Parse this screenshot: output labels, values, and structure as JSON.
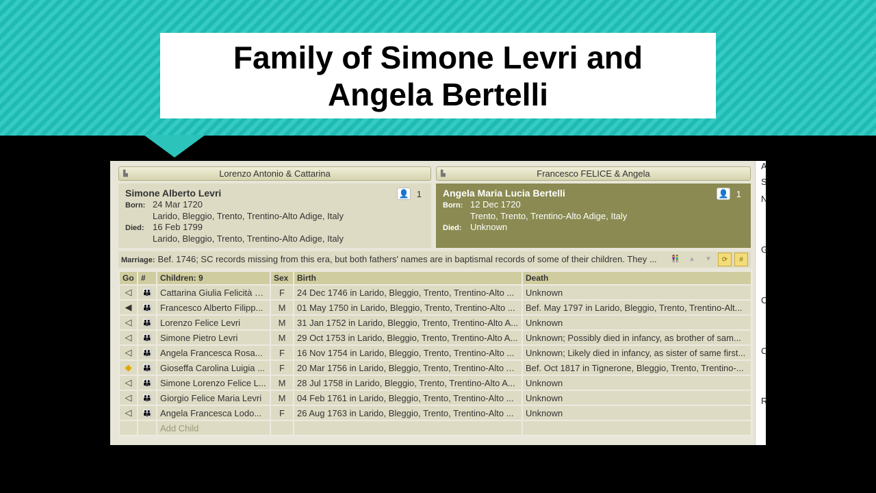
{
  "slide": {
    "title": "Family of Simone Levri and Angela Bertelli"
  },
  "husband": {
    "parents": "Lorenzo Antonio & Cattarina",
    "name": "Simone Alberto Levri",
    "born_label": "Born:",
    "born_date": "24 Mar 1720",
    "born_place": "Larido, Bleggio, Trento, Trentino-Alto Adige, Italy",
    "died_label": "Died:",
    "died_date": "16 Feb 1799",
    "died_place": "Larido, Bleggio, Trento, Trentino-Alto Adige, Italy",
    "media_count": "1"
  },
  "wife": {
    "parents": "Francesco FELICE & Angela",
    "name": "Angela Maria Lucia Bertelli",
    "born_label": "Born:",
    "born_date": "12 Dec 1720",
    "born_place": "Trento, Trento, Trentino-Alto Adige, Italy",
    "died_label": "Died:",
    "died_date": "Unknown",
    "media_count": "1"
  },
  "marriage": {
    "label": "Marriage:",
    "text": "Bef. 1746; SC records missing from this era, but both fathers' names are in baptismal records of some of their children. They ..."
  },
  "table": {
    "headers": [
      "Go",
      "#",
      "Children: 9",
      "Sex",
      "Birth",
      "Death"
    ],
    "rows": [
      {
        "go": "◁",
        "name": "Cattarina Giulia Felicità L...",
        "sex": "F",
        "birth": "24 Dec 1746 in Larido, Bleggio, Trento, Trentino-Alto ...",
        "death": "Unknown"
      },
      {
        "go": "◀",
        "name": "Francesco Alberto Filipp...",
        "sex": "M",
        "birth": "01 May 1750 in Larido, Bleggio, Trento, Trentino-Alto ...",
        "death": "Bef. May 1797 in Larido, Bleggio, Trento, Trentino-Alt..."
      },
      {
        "go": "◁",
        "name": "Lorenzo Felice Levri",
        "sex": "M",
        "birth": "31 Jan 1752 in Larido, Bleggio, Trento, Trentino-Alto A...",
        "death": "Unknown"
      },
      {
        "go": "◁",
        "name": "Simone Pietro Levri",
        "sex": "M",
        "birth": "29 Oct 1753 in Larido, Bleggio, Trento, Trentino-Alto A...",
        "death": "Unknown; Possibly died in infancy, as brother of sam..."
      },
      {
        "go": "◁",
        "name": "Angela Francesca Rosa...",
        "sex": "F",
        "birth": "16 Nov 1754 in Larido, Bleggio, Trento, Trentino-Alto ...",
        "death": "Unknown; Likely died in infancy, as sister of same first..."
      },
      {
        "go": "◆",
        "name": "Gioseffa Carolina Luigia ...",
        "sex": "F",
        "birth": "20 Mar 1756 in Larido, Bleggio, Trento, Trentino-Alto A...",
        "death": "Bef. Oct 1817 in Tignerone, Bleggio, Trento, Trentino-..."
      },
      {
        "go": "◁",
        "name": "Simone Lorenzo Felice L...",
        "sex": "M",
        "birth": "28 Jul 1758 in Larido, Bleggio, Trento, Trentino-Alto A...",
        "death": "Unknown"
      },
      {
        "go": "◁",
        "name": "Giorgio Felice Maria Levri",
        "sex": "M",
        "birth": "04 Feb 1761 in Larido, Bleggio, Trento, Trentino-Alto ...",
        "death": "Unknown"
      },
      {
        "go": "◁",
        "name": "Angela Francesca Lodo...",
        "sex": "F",
        "birth": "26 Aug 1763 in Larido, Bleggio, Trento, Trentino-Alto ...",
        "death": "Unknown"
      }
    ],
    "add_child": "Add Child"
  },
  "right_pane": [
    "A",
    "S",
    "N",
    "G",
    "C",
    "C",
    "R"
  ],
  "colors": {
    "banner": "#2cc3bb",
    "wife_bg": "#8a8a52",
    "panel_bg": "#dedbc4",
    "header_bg": "#cfcc9f",
    "highlight": "#f5dc7a"
  }
}
